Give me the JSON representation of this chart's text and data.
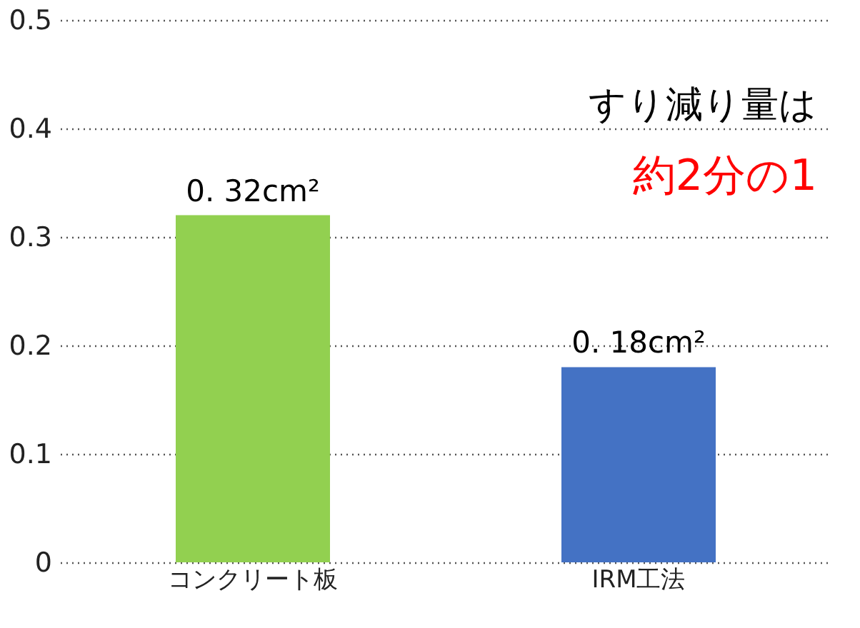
{
  "chart_data": {
    "type": "bar",
    "categories": [
      "コンクリート板",
      "IRM工法"
    ],
    "values": [
      0.32,
      0.18
    ],
    "colors": [
      "#92d050",
      "#4472c4"
    ],
    "value_labels": [
      "0. 32cm²",
      "0. 18cm²"
    ],
    "ylim": [
      0,
      0.5
    ],
    "yticks": [
      0,
      0.1,
      0.2,
      0.3,
      0.4,
      0.5
    ],
    "grid": "y",
    "annotations": [
      "すり減り量は",
      "約2分の1"
    ]
  }
}
